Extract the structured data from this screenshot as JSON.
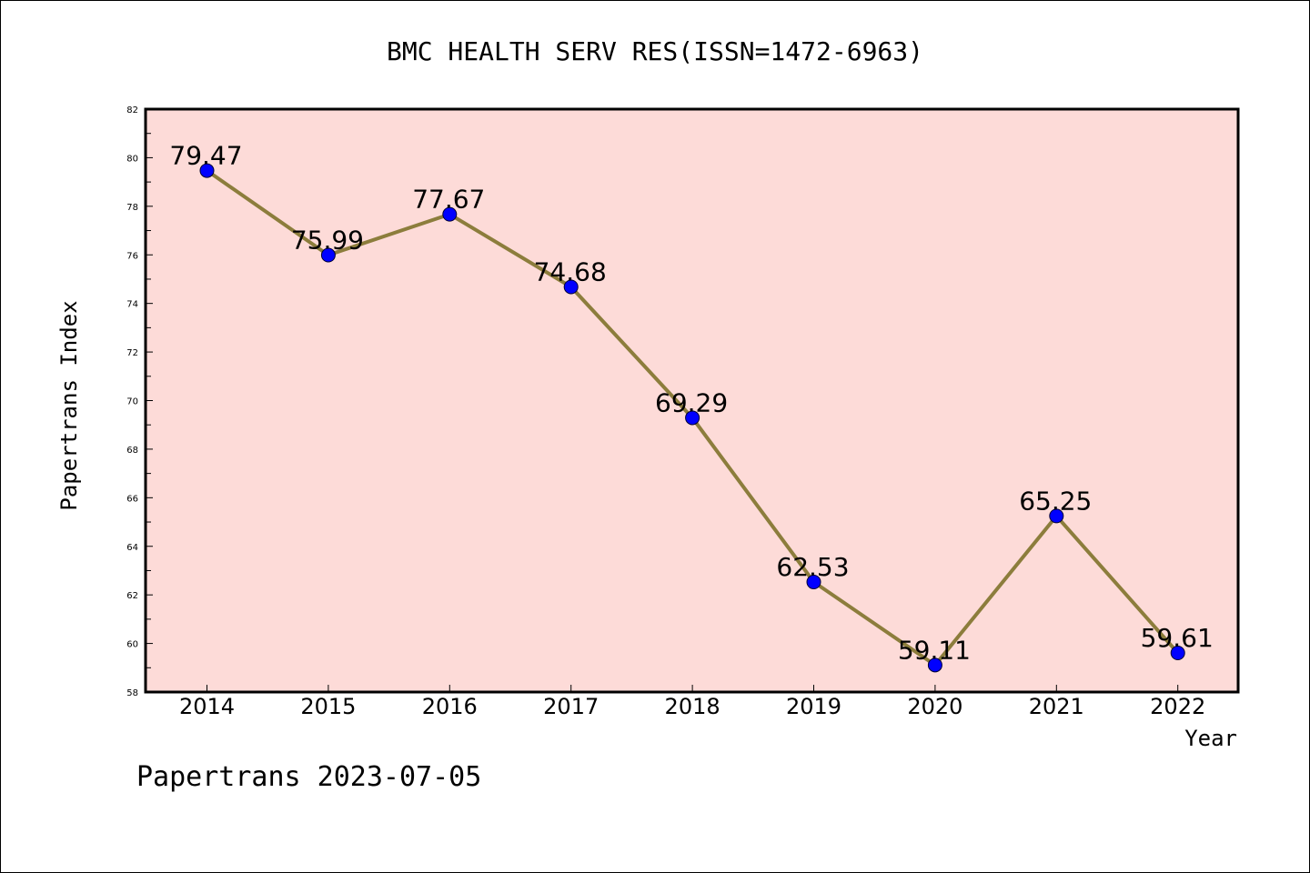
{
  "chart_data": {
    "type": "line",
    "title": "BMC HEALTH SERV RES(ISSN=1472-6963)",
    "xlabel": "Year",
    "ylabel": "Papertrans Index",
    "categories": [
      "2014",
      "2015",
      "2016",
      "2017",
      "2018",
      "2019",
      "2020",
      "2021",
      "2022"
    ],
    "series": [
      {
        "values": [
          79.47,
          75.99,
          77.67,
          74.68,
          69.29,
          62.53,
          59.11,
          65.25,
          59.61
        ],
        "labels": [
          "79.47",
          "75.99",
          "77.67",
          "74.68",
          "69.29",
          "62.53",
          "59.11",
          "65.25",
          "59.61"
        ]
      }
    ],
    "ylim": [
      58,
      82
    ],
    "yticks": [
      "58",
      "60",
      "62",
      "64",
      "66",
      "68",
      "70",
      "72",
      "74",
      "76",
      "78",
      "80",
      "82"
    ],
    "grid": false,
    "legend": "none",
    "colors": {
      "plot_background": "#fddbd8",
      "line": "#8c7d3c",
      "marker": "#0000ff",
      "axis": "#000000"
    }
  },
  "footer": {
    "text": "Papertrans 2023-07-05"
  }
}
